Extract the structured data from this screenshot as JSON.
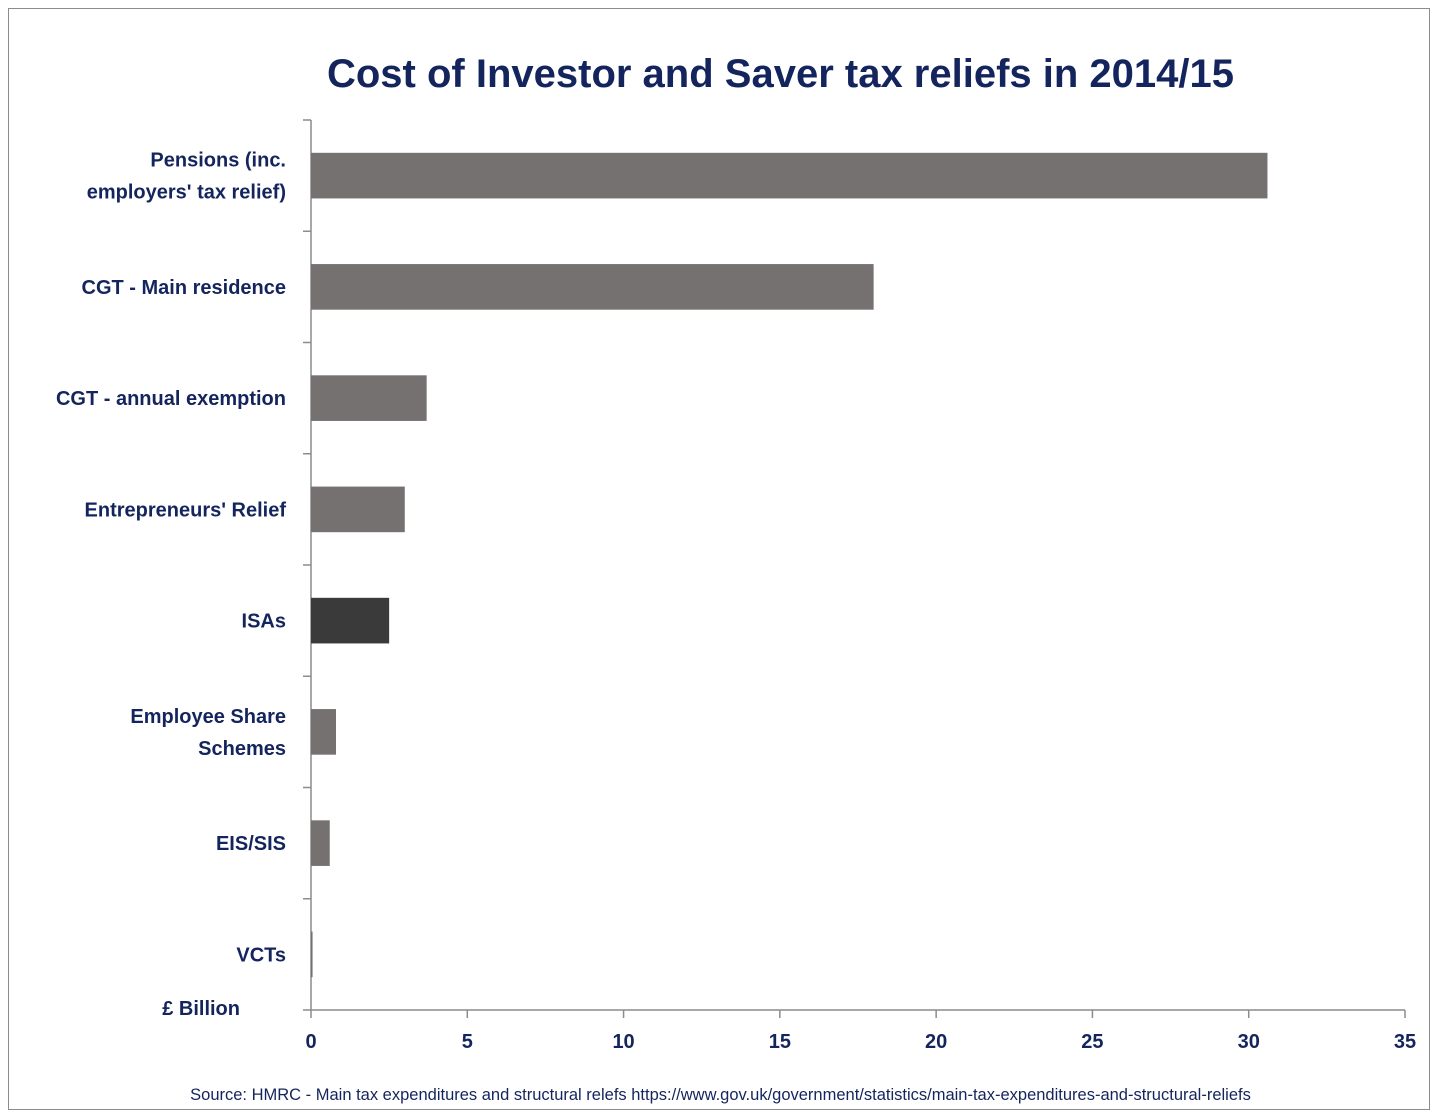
{
  "chart_data": {
    "type": "bar",
    "orientation": "horizontal",
    "title": "Cost of Investor and Saver tax reliefs in 2014/15",
    "xlabel": "£ Billion",
    "ylabel": "",
    "xlim": [
      0,
      35
    ],
    "x_ticks": [
      "0",
      "5",
      "10",
      "15",
      "20",
      "25",
      "30",
      "35"
    ],
    "grid": false,
    "categories": [
      [
        "Pensions (inc.",
        "employers' tax relief)"
      ],
      [
        "CGT - Main residence"
      ],
      [
        "CGT - annual exemption"
      ],
      [
        "Entrepreneurs' Relief"
      ],
      [
        "ISAs"
      ],
      [
        "Employee Share",
        "Schemes"
      ],
      [
        "EIS/SIS"
      ],
      [
        "VCTs"
      ]
    ],
    "values": [
      30.6,
      18.0,
      3.7,
      3.0,
      2.5,
      0.8,
      0.6,
      0.05
    ],
    "colors": [
      "#767171",
      "#767171",
      "#767171",
      "#767171",
      "#3a3a3a",
      "#767171",
      "#767171",
      "#767171"
    ]
  },
  "source": "Source: HMRC - Main tax expenditures and structural relefs https://www.gov.uk/government/statistics/main-tax-expenditures-and-structural-reliefs"
}
